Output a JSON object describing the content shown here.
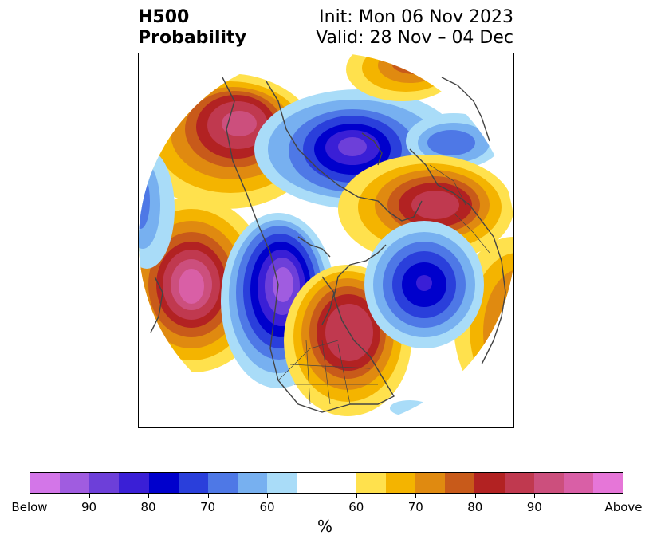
{
  "title": {
    "left_line1": "H500",
    "left_line2": "Probability",
    "right_line1": "Init: Mon 06 Nov 2023",
    "right_line2": "Valid: 28 Nov – 04 Dec"
  },
  "map": {
    "projection": "polar stereographic (north pole)",
    "coastline_color": "#444444"
  },
  "colorbar": {
    "unit": "%",
    "colors": [
      "#d376e8",
      "#a05ce0",
      "#6d3fd9",
      "#3a1fd6",
      "#0000cc",
      "#2a3fdb",
      "#4e78e6",
      "#77b0f0",
      "#a9dcf8",
      "#ffffff",
      "#ffffff",
      "#ffe14d",
      "#f4b400",
      "#e08a10",
      "#c85a1a",
      "#b22222",
      "#c0394f",
      "#cc4f7d",
      "#d95fa6",
      "#e676d8"
    ],
    "tick_labels": [
      "Below",
      "90",
      "80",
      "70",
      "60",
      "60",
      "70",
      "80",
      "90",
      "Above"
    ]
  }
}
